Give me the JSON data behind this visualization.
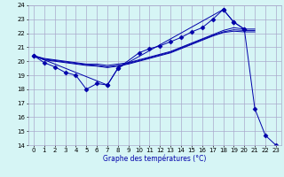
{
  "title": "Graphe des températures (°C)",
  "background_color": "#d6f5f5",
  "grid_color": "#aaaacc",
  "line_color": "#0000aa",
  "xlim": [
    -0.5,
    23.5
  ],
  "ylim": [
    14,
    24
  ],
  "xticks": [
    0,
    1,
    2,
    3,
    4,
    5,
    6,
    7,
    8,
    9,
    10,
    11,
    12,
    13,
    14,
    15,
    16,
    17,
    18,
    19,
    20,
    21,
    22,
    23
  ],
  "yticks": [
    14,
    15,
    16,
    17,
    18,
    19,
    20,
    21,
    22,
    23,
    24
  ],
  "series": [
    {
      "x": [
        0,
        1,
        2,
        3,
        4,
        5,
        6,
        7,
        8,
        10,
        11,
        12,
        13,
        14,
        15,
        16,
        17,
        18,
        19,
        20
      ],
      "y": [
        20.4,
        19.9,
        19.6,
        19.2,
        19.0,
        18.0,
        18.4,
        18.3,
        19.5,
        20.6,
        20.9,
        21.1,
        21.4,
        21.7,
        22.1,
        22.4,
        23.0,
        23.7,
        22.8,
        22.3
      ],
      "marker": "D",
      "markersize": 2.5
    },
    {
      "x": [
        0,
        1,
        2,
        3,
        4,
        5,
        6,
        7,
        8,
        9,
        10,
        11,
        12,
        13,
        14,
        15,
        16,
        17,
        18,
        19,
        20,
        21
      ],
      "y": [
        20.4,
        20.2,
        20.1,
        20.0,
        19.9,
        19.8,
        19.8,
        19.7,
        19.8,
        19.9,
        20.1,
        20.3,
        20.5,
        20.7,
        21.0,
        21.3,
        21.6,
        21.9,
        22.2,
        22.4,
        22.3,
        22.3
      ],
      "marker": null,
      "markersize": 0
    },
    {
      "x": [
        0,
        1,
        2,
        3,
        4,
        5,
        6,
        7,
        8,
        9,
        10,
        11,
        12,
        13,
        14,
        15,
        16,
        17,
        18,
        19,
        20,
        21
      ],
      "y": [
        20.4,
        20.15,
        20.05,
        19.95,
        19.85,
        19.75,
        19.7,
        19.6,
        19.7,
        19.85,
        20.05,
        20.25,
        20.45,
        20.65,
        20.95,
        21.25,
        21.55,
        21.85,
        22.1,
        22.25,
        22.2,
        22.2
      ],
      "marker": null,
      "markersize": 0
    },
    {
      "x": [
        0,
        1,
        2,
        3,
        4,
        5,
        6,
        7,
        8,
        9,
        10,
        11,
        12,
        13,
        14,
        15,
        16,
        17,
        18,
        19,
        20,
        21
      ],
      "y": [
        20.4,
        20.1,
        20.0,
        19.9,
        19.8,
        19.7,
        19.65,
        19.55,
        19.65,
        19.8,
        20.0,
        20.2,
        20.4,
        20.6,
        20.9,
        21.2,
        21.5,
        21.8,
        22.05,
        22.15,
        22.1,
        22.1
      ],
      "marker": null,
      "markersize": 0
    },
    {
      "x": [
        0,
        7,
        8,
        18,
        19,
        20,
        21,
        22,
        23
      ],
      "y": [
        20.4,
        18.3,
        19.5,
        23.7,
        22.8,
        22.3,
        16.6,
        14.7,
        14.0
      ],
      "marker": "D",
      "markersize": 2.5
    }
  ]
}
